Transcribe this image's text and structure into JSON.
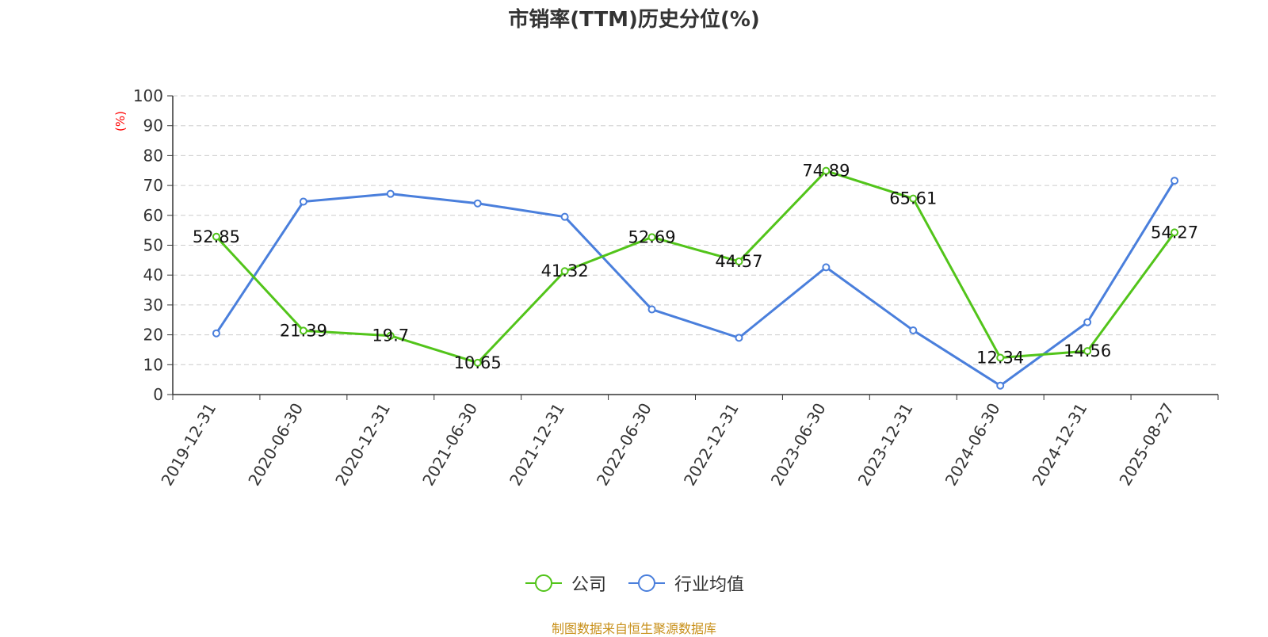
{
  "chart_data": {
    "type": "line",
    "title": "市销率(TTM)历史分位(%)",
    "ylabel": "(%)",
    "ylim": [
      0,
      100
    ],
    "yticks": [
      0,
      10,
      20,
      30,
      40,
      50,
      60,
      70,
      80,
      90,
      100
    ],
    "grid": true,
    "legend_position": "bottom-center",
    "categories": [
      "2019-12-31",
      "2020-06-30",
      "2020-12-31",
      "2021-06-30",
      "2021-12-31",
      "2022-06-30",
      "2022-12-31",
      "2023-06-30",
      "2023-12-31",
      "2024-06-30",
      "2024-12-31",
      "2025-08-27"
    ],
    "series": [
      {
        "name": "公司",
        "color": "#52c41a",
        "values": [
          52.85,
          21.39,
          19.7,
          10.65,
          41.32,
          52.69,
          44.57,
          74.89,
          65.61,
          12.34,
          14.56,
          54.27
        ],
        "labels": [
          "52.85",
          "21.39",
          "19.7",
          "10.65",
          "41.32",
          "52.69",
          "44.57",
          "74.89",
          "65.61",
          "12.34",
          "14.56",
          "54.27"
        ]
      },
      {
        "name": "行业均值",
        "color": "#4a7fdc",
        "values": [
          20.5,
          64.6,
          67.2,
          64.0,
          59.5,
          28.5,
          19.0,
          42.6,
          21.5,
          3.0,
          24.2,
          71.6
        ]
      }
    ]
  },
  "footer": {
    "source": "制图数据来自恒生聚源数据库",
    "source_color": "#c8901a"
  },
  "colors": {
    "ylabel": "#ff0000",
    "grid": "#cccccc",
    "axis": "#333333"
  }
}
